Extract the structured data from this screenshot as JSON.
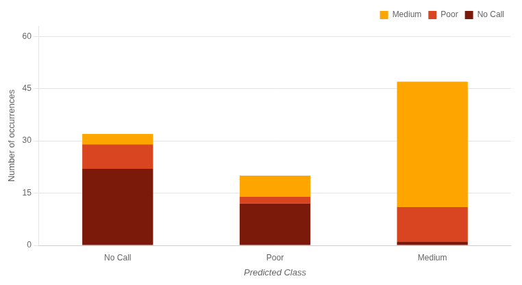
{
  "chart_data": {
    "type": "bar",
    "xlabel": "Predicted Class",
    "ylabel": "Number of occurrences",
    "categories": [
      "No Call",
      "Poor",
      "Medium"
    ],
    "series": [
      {
        "name": "No Call",
        "color": "#7B1A0A",
        "values": [
          22,
          12,
          1
        ]
      },
      {
        "name": "Poor",
        "color": "#D94520",
        "values": [
          7,
          2,
          10
        ]
      },
      {
        "name": "Medium",
        "color": "#FFA500",
        "values": [
          3,
          6,
          36
        ]
      }
    ],
    "stacked": true,
    "ylim": [
      0,
      63
    ],
    "yticks": [
      0,
      15,
      30,
      45,
      60
    ],
    "grid": true,
    "legend": "upper right"
  }
}
